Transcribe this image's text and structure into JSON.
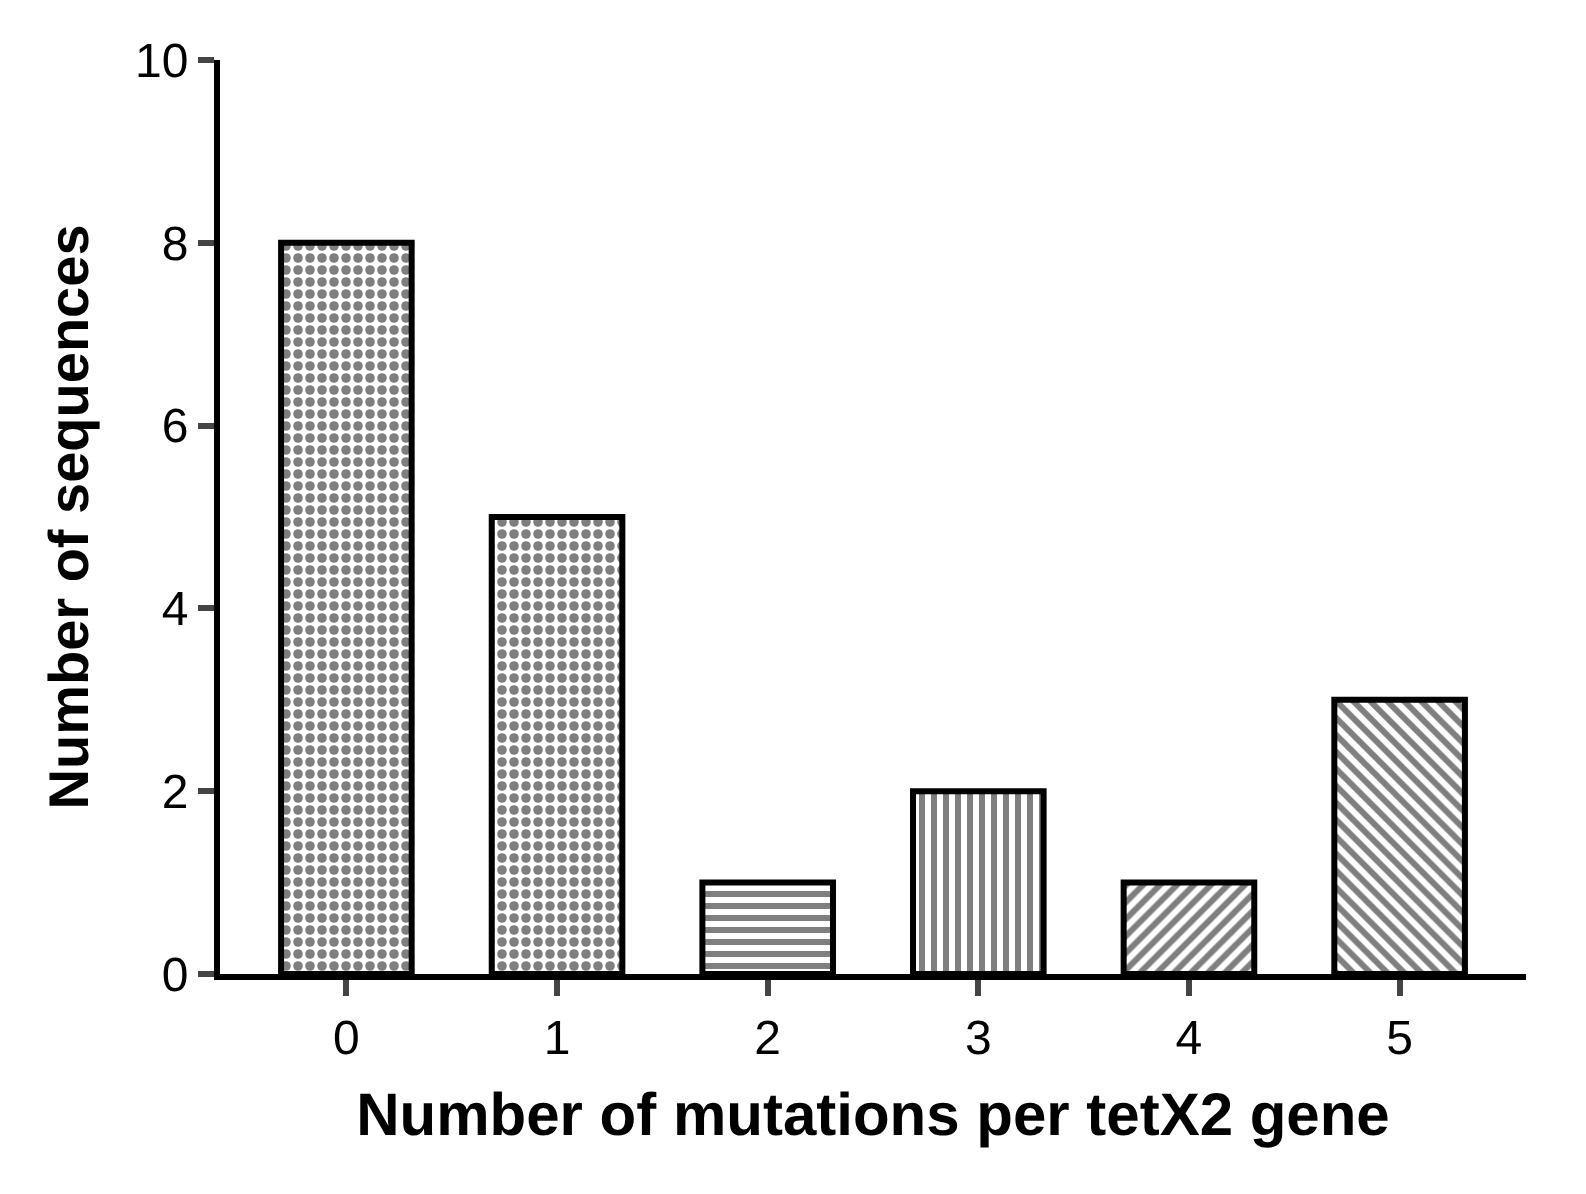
{
  "chart_data": {
    "type": "bar",
    "xlabel": "Number of mutations per tetX2 gene",
    "ylabel": "Number of sequences",
    "categories": [
      "0",
      "1",
      "2",
      "3",
      "4",
      "5"
    ],
    "values": [
      8,
      5,
      1,
      2,
      1,
      3
    ],
    "color": "#000000",
    "ylim": [
      0,
      10
    ],
    "yticks": [
      0,
      2,
      4,
      6,
      8,
      10
    ]
  }
}
